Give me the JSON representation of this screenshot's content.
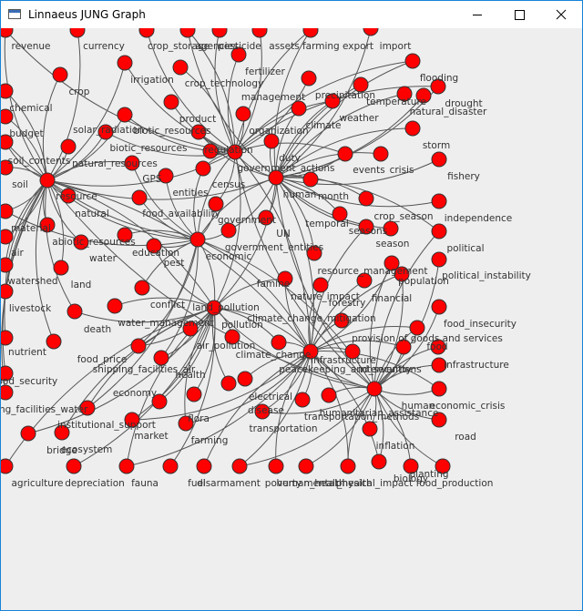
{
  "window": {
    "title": "Linnaeus JUNG Graph"
  },
  "graph": {
    "nodes": [
      "revenue",
      "currency",
      "crop_storage",
      "agencies",
      "pesticide",
      "assets",
      "farming export",
      "import",
      "fertilizer",
      "irrigation",
      "crop",
      "crop_technology",
      "flooding",
      "management",
      "precipitation",
      "drought",
      "temperature",
      "natural_disaster",
      "weather",
      "chemical",
      "product",
      "solar_radiation",
      "climate",
      "budget",
      "biotic_resources",
      "organization",
      "regulation",
      "biotic_resources",
      "storm",
      "fishery",
      "soil_contents",
      "natural_resources",
      "duty",
      "events",
      "crisis",
      "government_actions",
      "GPS",
      "soil",
      "census",
      "entities",
      "month",
      "human",
      "resource",
      "natural",
      "food_availability",
      "government",
      "crop_season",
      "independence",
      "material",
      "abiotic_resources",
      "temporal",
      "seasons",
      "UN",
      "season",
      "political",
      "education",
      "economic",
      "government_entities",
      "air",
      "water",
      "pest",
      "watershed",
      "land",
      "resource_management",
      "population",
      "political_instability",
      "famine",
      "conflict",
      "nature_impact",
      "financial",
      "forestry",
      "livestock",
      "land_pollution",
      "death",
      "climate_change_mitigation",
      "water_management",
      "pollution",
      "food_insecurity",
      "provision of goods and services",
      "nutrient",
      "air_pollution",
      "climate_change",
      "food",
      "food_price",
      "shipping_facilities_air",
      "infrastructure",
      "peacekeeping_and_security",
      "interventions",
      "infrastructure",
      "food_security",
      "health",
      "electrical",
      "human",
      "economic_crisis",
      "economy",
      "shipping_facilities_water",
      "disease",
      "transportation_methods",
      "humanitarian_assistance",
      "institutional_support",
      "flora",
      "transportation",
      "market",
      "road",
      "inflation",
      "farming",
      "bridge",
      "ecosystem",
      "biology",
      "agriculture",
      "depreciation",
      "fauna",
      "fuel",
      "disarmament",
      "poverty",
      "human_health",
      "mental_health",
      "physical_impact",
      "planting",
      "food_production"
    ]
  }
}
